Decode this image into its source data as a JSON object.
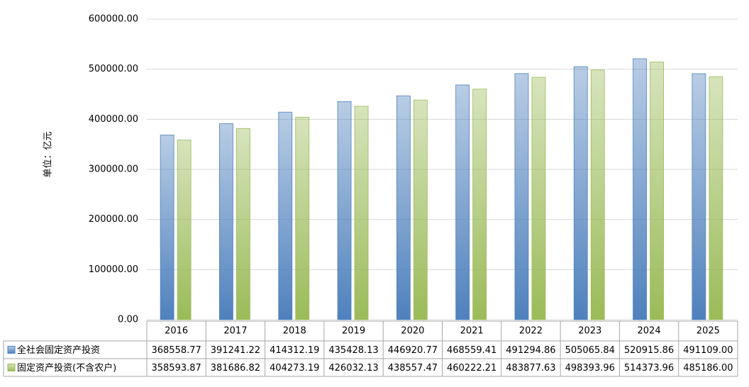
{
  "chart_data": {
    "type": "bar",
    "y_label": "单位：亿元",
    "categories": [
      "2016",
      "2017",
      "2018",
      "2019",
      "2020",
      "2021",
      "2022",
      "2023",
      "2024",
      "2025"
    ],
    "series": [
      {
        "name": "全社会固定资产投资",
        "color": "#4f81bd",
        "values": [
          368558.77,
          391241.22,
          414312.19,
          435428.13,
          446920.77,
          468559.41,
          491294.86,
          505065.84,
          520915.86,
          491109
        ],
        "value_labels": [
          "368558.77",
          "391241.22",
          "414312.19",
          "435428.13",
          "446920.77",
          "468559.41",
          "491294.86",
          "505065.84",
          "520915.86",
          "491109.00"
        ]
      },
      {
        "name": "固定资产投资(不含农户)",
        "color": "#9bbb59",
        "values": [
          358593.87,
          381686.82,
          404273.19,
          426032.13,
          438557.47,
          460222.21,
          483877.63,
          498393.96,
          514373.96,
          485186
        ],
        "value_labels": [
          "358593.87",
          "381686.82",
          "404273.19",
          "426032.13",
          "438557.47",
          "460222.21",
          "483877.63",
          "498393.96",
          "514373.96",
          "485186.00"
        ]
      }
    ],
    "ylim": [
      0,
      600000
    ],
    "yticks": [
      {
        "value": 0,
        "label": "0.00"
      },
      {
        "value": 100000,
        "label": "100000.00"
      },
      {
        "value": 200000,
        "label": "200000.00"
      },
      {
        "value": 300000,
        "label": "300000.00"
      },
      {
        "value": 400000,
        "label": "400000.00"
      },
      {
        "value": 500000,
        "label": "500000.00"
      },
      {
        "value": 600000,
        "label": "600000.00"
      }
    ],
    "grid": true
  }
}
